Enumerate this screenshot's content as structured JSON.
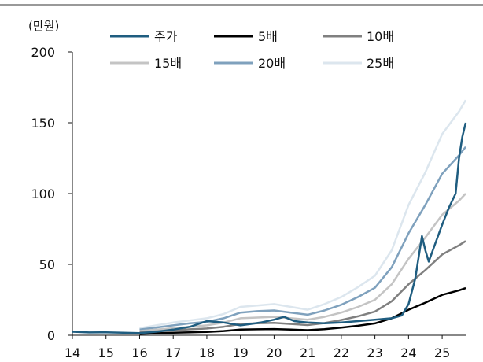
{
  "chart_data": {
    "type": "line",
    "unit_label": "(만원)",
    "ylim": [
      0,
      200
    ],
    "yticks": [
      0,
      50,
      100,
      150,
      200
    ],
    "xlim": [
      14,
      25.7
    ],
    "xticks": [
      14,
      15,
      16,
      17,
      18,
      19,
      20,
      21,
      22,
      23,
      24,
      25
    ],
    "xtick_labels": [
      "14",
      "15",
      "16",
      "17",
      "18",
      "19",
      "20",
      "21",
      "22",
      "23",
      "24",
      "25"
    ],
    "grid": false,
    "legend_position": "top",
    "series": [
      {
        "name": "25배",
        "color": "#dce6ee",
        "width": 2.5,
        "x": [
          16,
          16.5,
          17,
          17.5,
          18,
          18.5,
          19,
          19.5,
          20,
          20.5,
          21,
          21.5,
          22,
          22.5,
          23,
          23.5,
          24,
          24.5,
          25,
          25.5,
          25.7
        ],
        "y": [
          5,
          7,
          9,
          10.5,
          12,
          15,
          20,
          21,
          22,
          20,
          18,
          22,
          27,
          34,
          42,
          60,
          92,
          115,
          142,
          158,
          166
        ]
      },
      {
        "name": "20배",
        "color": "#7fa1bd",
        "width": 2.5,
        "x": [
          16,
          16.5,
          17,
          17.5,
          18,
          18.5,
          19,
          19.5,
          20,
          20.5,
          21,
          21.5,
          22,
          22.5,
          23,
          23.5,
          24,
          24.5,
          25,
          25.5,
          25.7
        ],
        "y": [
          4,
          5.5,
          7,
          8.5,
          9.5,
          12,
          16,
          17,
          17.5,
          16,
          14.5,
          17.5,
          21.5,
          27,
          33.5,
          48,
          72,
          92,
          114,
          127,
          133
        ]
      },
      {
        "name": "15배",
        "color": "#c4c4c4",
        "width": 2.5,
        "x": [
          16,
          16.5,
          17,
          17.5,
          18,
          18.5,
          19,
          19.5,
          20,
          20.5,
          21,
          21.5,
          22,
          22.5,
          23,
          23.5,
          24,
          24.5,
          25,
          25.5,
          25.7
        ],
        "y": [
          3,
          4,
          5,
          6,
          7,
          9,
          12,
          12.5,
          13,
          12,
          11,
          13,
          16,
          20,
          25,
          36,
          54,
          69,
          85,
          95,
          100
        ]
      },
      {
        "name": "10배",
        "color": "#808080",
        "width": 2.5,
        "x": [
          16,
          16.5,
          17,
          17.5,
          18,
          18.5,
          19,
          19.5,
          20,
          20.5,
          21,
          21.5,
          22,
          22.5,
          23,
          23.5,
          24,
          24.5,
          25,
          25.5,
          25.7
        ],
        "y": [
          2,
          2.8,
          3.5,
          4.2,
          4.8,
          6,
          8,
          8.5,
          8.8,
          8,
          7.2,
          8.6,
          10.8,
          13.4,
          16.7,
          24,
          36,
          46,
          57,
          63.5,
          66.5
        ]
      },
      {
        "name": "5배",
        "color": "#000000",
        "width": 2.5,
        "x": [
          16,
          16.5,
          17,
          17.5,
          18,
          18.5,
          19,
          19.5,
          20,
          20.5,
          21,
          21.5,
          22,
          22.5,
          23,
          23.5,
          24,
          24.5,
          25,
          25.5,
          25.7
        ],
        "y": [
          1,
          1.4,
          1.8,
          2.1,
          2.4,
          3,
          4,
          4.2,
          4.4,
          4,
          3.6,
          4.3,
          5.4,
          6.7,
          8.4,
          12,
          18,
          23,
          28.5,
          31.7,
          33.3
        ]
      },
      {
        "name": "주가",
        "color": "#1f5d80",
        "width": 2.5,
        "x": [
          14,
          14.5,
          15,
          15.5,
          16,
          16.5,
          17,
          17.5,
          18,
          18.5,
          19,
          19.3,
          19.6,
          20,
          20.3,
          20.6,
          21,
          21.5,
          22,
          22.5,
          23,
          23.5,
          23.8,
          24,
          24.2,
          24.4,
          24.5,
          24.6,
          24.8,
          25,
          25.2,
          25.4,
          25.5,
          25.6,
          25.7
        ],
        "y": [
          2.5,
          2,
          2.1,
          1.8,
          1.5,
          2.5,
          4,
          6,
          10,
          9,
          7,
          8,
          9,
          11,
          13,
          10,
          9,
          8.5,
          9,
          10,
          11,
          12,
          14,
          22,
          40,
          70,
          60,
          52,
          65,
          78,
          90,
          100,
          125,
          140,
          150
        ]
      }
    ]
  }
}
